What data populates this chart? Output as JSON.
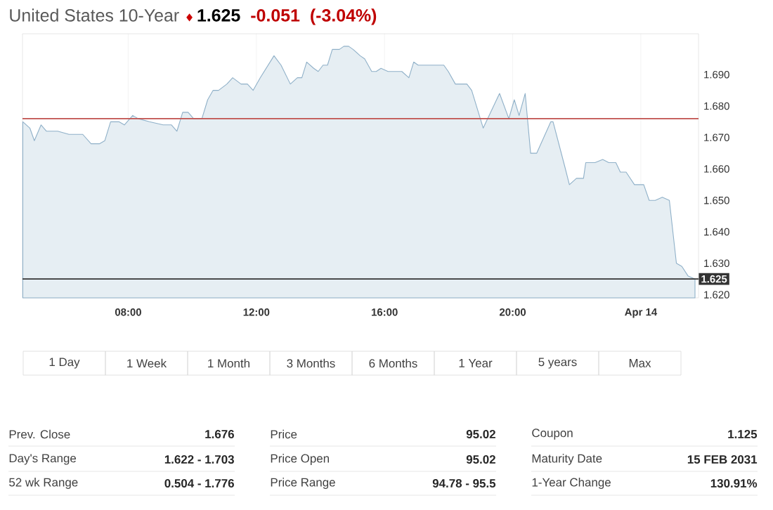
{
  "chart_data": {
    "type": "area",
    "title": "United States 10-Year",
    "x": [
      4.71,
      4.93,
      5.07,
      5.28,
      5.45,
      5.8,
      6.15,
      6.58,
      6.84,
      7.1,
      7.27,
      7.45,
      7.71,
      7.88,
      8.14,
      8.31,
      8.66,
      9.09,
      9.35,
      9.52,
      9.7,
      9.87,
      10.04,
      10.3,
      10.48,
      10.65,
      10.82,
      11.08,
      11.26,
      11.52,
      11.72,
      11.9,
      12.12,
      12.55,
      12.77,
      13.06,
      13.28,
      13.42,
      13.57,
      13.79,
      13.93,
      14.08,
      14.22,
      14.37,
      14.59,
      14.73,
      14.88,
      15.02,
      15.24,
      15.38,
      15.6,
      15.74,
      15.89,
      16.11,
      16.54,
      16.76,
      16.91,
      17.05,
      17.85,
      17.99,
      18.21,
      18.57,
      18.72,
      19.08,
      19.59,
      19.88,
      20.05,
      20.2,
      20.39,
      20.56,
      20.75,
      21.19,
      21.26,
      21.62,
      21.77,
      21.99,
      22.21,
      22.28,
      22.57,
      22.81,
      23.0,
      23.22,
      23.36,
      23.54,
      23.8,
      24.09,
      24.26,
      24.45,
      24.67,
      24.89,
      25.11,
      25.28,
      25.47,
      25.69
    ],
    "series": [
      {
        "color": "#8fb0c8",
        "values": [
          1.675,
          1.673,
          1.669,
          1.674,
          1.672,
          1.672,
          1.671,
          1.671,
          1.668,
          1.668,
          1.669,
          1.675,
          1.675,
          1.674,
          1.677,
          1.676,
          1.675,
          1.674,
          1.674,
          1.672,
          1.678,
          1.678,
          1.676,
          1.676,
          1.682,
          1.685,
          1.685,
          1.687,
          1.689,
          1.687,
          1.687,
          1.685,
          1.689,
          1.696,
          1.693,
          1.687,
          1.689,
          1.689,
          1.694,
          1.692,
          1.691,
          1.693,
          1.693,
          1.698,
          1.698,
          1.699,
          1.699,
          1.698,
          1.696,
          1.695,
          1.691,
          1.691,
          1.692,
          1.691,
          1.691,
          1.689,
          1.694,
          1.693,
          1.693,
          1.691,
          1.687,
          1.687,
          1.685,
          1.673,
          1.684,
          1.676,
          1.682,
          1.677,
          1.684,
          1.665,
          1.665,
          1.675,
          1.675,
          1.661,
          1.655,
          1.657,
          1.657,
          1.662,
          1.662,
          1.663,
          1.662,
          1.662,
          1.659,
          1.659,
          1.655,
          1.655,
          1.65,
          1.65,
          1.651,
          1.65,
          1.63,
          1.629,
          1.626,
          1.625
        ]
      }
    ],
    "xlim": [
      4.7,
      25.8
    ],
    "xticks": [
      {
        "value": 8,
        "label": "08:00"
      },
      {
        "value": 12,
        "label": "12:00"
      },
      {
        "value": 16,
        "label": "16:00"
      },
      {
        "value": 20,
        "label": "20:00"
      },
      {
        "value": 24,
        "label": "Apr 14"
      }
    ],
    "ylim": [
      1.619,
      1.703
    ],
    "yticks": [
      {
        "value": 1.62,
        "label": "1.620"
      },
      {
        "value": 1.63,
        "label": "1.630"
      },
      {
        "value": 1.64,
        "label": "1.640"
      },
      {
        "value": 1.65,
        "label": "1.650"
      },
      {
        "value": 1.66,
        "label": "1.660"
      },
      {
        "value": 1.67,
        "label": "1.670"
      },
      {
        "value": 1.68,
        "label": "1.680"
      },
      {
        "value": 1.69,
        "label": "1.690"
      }
    ],
    "grid": "x",
    "ref_lines": [
      {
        "axis": "y",
        "value": 1.676,
        "color": "#c0504d"
      },
      {
        "axis": "y",
        "value": 1.625,
        "label": "1.625",
        "color": "#333333"
      }
    ],
    "annotations": [
      "1.625",
      "-0.051",
      "(-3.04%)",
      "1 Day",
      "1 Week",
      "1 Month",
      "3 Months",
      "6 Months",
      "1 Year",
      "5 years",
      "Max",
      "Prev. Close",
      "1.676",
      "Day's Range",
      "1.622 - 1.703",
      "52 wk Range",
      "0.504 - 1.776",
      "Price",
      "95.02",
      "Price Open",
      "95.02",
      "Price Range",
      "94.78 - 95.5",
      "Coupon",
      "1.125",
      "Maturity Date",
      "15 FEB 2031",
      "1-Year Change",
      "130.91%"
    ]
  }
}
